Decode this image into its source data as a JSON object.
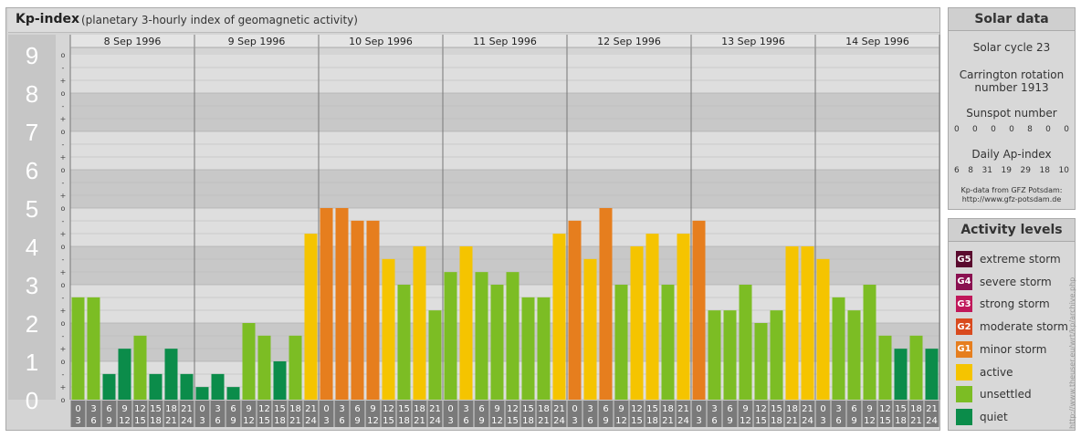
{
  "header": {
    "title": "Kp-index",
    "subtitle": "(planetary 3-hourly index of geomagnetic activity)"
  },
  "chart_data": {
    "type": "bar",
    "title": "Kp-index",
    "ylim": [
      0,
      9
    ],
    "y_ticks": [
      "0",
      "1",
      "2",
      "3",
      "4",
      "5",
      "6",
      "7",
      "8",
      "9"
    ],
    "minor_tick_labels": [
      "o",
      "+",
      "-"
    ],
    "days": [
      "8 Sep 1996",
      "9 Sep 1996",
      "10 Sep 1996",
      "11 Sep 1996",
      "12 Sep 1996",
      "13 Sep 1996",
      "14 Sep 1996"
    ],
    "interval_top": [
      "0",
      "3",
      "6",
      "9",
      "12",
      "15",
      "18",
      "21"
    ],
    "interval_bottom": [
      "3",
      "6",
      "9",
      "12",
      "15",
      "18",
      "21",
      "24"
    ],
    "values": [
      [
        2.67,
        2.67,
        0.67,
        1.33,
        1.67,
        0.67,
        1.33,
        0.67
      ],
      [
        0.33,
        0.67,
        0.33,
        2.0,
        1.67,
        1.0,
        1.67,
        4.33
      ],
      [
        5.0,
        5.0,
        4.67,
        4.67,
        3.67,
        3.0,
        4.0,
        2.33
      ],
      [
        3.33,
        4.0,
        3.33,
        3.0,
        3.33,
        2.67,
        2.67,
        4.33
      ],
      [
        4.67,
        3.67,
        5.0,
        3.0,
        4.0,
        4.33,
        3.0,
        4.33
      ],
      [
        4.67,
        2.33,
        2.33,
        3.0,
        2.0,
        2.33,
        4.0,
        4.0
      ],
      [
        3.67,
        2.67,
        2.33,
        3.0,
        1.67,
        1.33,
        1.67,
        1.33
      ]
    ],
    "colors": {
      "quiet": "#0b8c4a",
      "unsettled": "#7cbd24",
      "active": "#f5c400",
      "G1": "#e67e1e",
      "G2": "#d94a1e",
      "G3": "#c0185a",
      "G4": "#8a1050",
      "G5": "#5a0a2e"
    }
  },
  "solar_data": {
    "title": "Solar data",
    "solar_cycle": "Solar cycle 23",
    "carrington_line1": "Carrington rotation",
    "carrington_line2": "number 1913",
    "sunspot_label": "Sunspot number",
    "sunspot_values": [
      "0",
      "0",
      "0",
      "0",
      "8",
      "0",
      "0"
    ],
    "ap_label": "Daily Ap-index",
    "ap_values": [
      "6",
      "8",
      "31",
      "19",
      "29",
      "18",
      "10"
    ],
    "credit_line1": "Kp-data from GFZ Potsdam:",
    "credit_line2": "http://www.gfz-potsdam.de"
  },
  "activity_levels": {
    "title": "Activity levels",
    "items": [
      {
        "code": "G5",
        "label": "extreme storm",
        "color": "#5a0a2e"
      },
      {
        "code": "G4",
        "label": "severe storm",
        "color": "#8a1050"
      },
      {
        "code": "G3",
        "label": "strong storm",
        "color": "#c0185a"
      },
      {
        "code": "G2",
        "label": "moderate storm",
        "color": "#d94a1e"
      },
      {
        "code": "G1",
        "label": "minor storm",
        "color": "#e67e1e"
      },
      {
        "code": "",
        "label": "active",
        "color": "#f5c400"
      },
      {
        "code": "",
        "label": "unsettled",
        "color": "#7cbd24"
      },
      {
        "code": "",
        "label": "quiet",
        "color": "#0b8c4a"
      }
    ]
  },
  "watermark": "http://www.theuser.eu/wrt/kp/archive.php"
}
